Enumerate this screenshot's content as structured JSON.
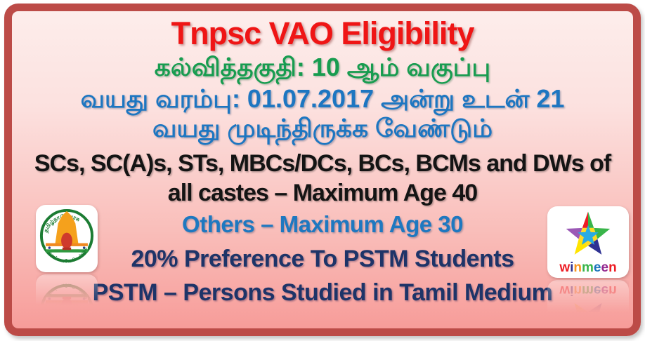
{
  "frame": {
    "border_color": "#bc4b47",
    "background_top": "#fdedeb",
    "background_bottom": "#f79c99"
  },
  "content": {
    "title": {
      "text": "Tnpsc VAO Eligibility",
      "color": "#ef1515"
    },
    "lines": [
      {
        "text": "கல்வித்தகுதி: 10 ஆம் வகுப்பு",
        "color": "#179c4f"
      },
      {
        "text": "வயது வரம்பு: 01.07.2017 அன்று உடன் 21",
        "color": "#1d76c1"
      },
      {
        "text": "வயது முடிந்திருக்க வேண்டும்",
        "color": "#1d76c1"
      },
      {
        "text": "SCs, SC(A)s, STs, MBCs/DCs, BCs, BCMs and DWs of",
        "color": "#141414"
      },
      {
        "text": "all castes – Maximum Age 40",
        "color": "#141414"
      },
      {
        "text": "Others – Maximum Age 30",
        "color": "#1e78c0"
      },
      {
        "text": "20% Preference To PSTM Students",
        "color": "#1e3468"
      },
      {
        "text": "PSTM – Persons Studied in Tamil Medium",
        "color": "#1e3468"
      }
    ]
  },
  "logos": {
    "tamilnadu": {
      "ring_text": "தமிழ்நாடு அரசு",
      "motto": "வாய்மையே வெல்லும்",
      "ring_color": "#1c7c33",
      "gopuram_color": "#f5a11c",
      "lion_color": "#cf3a2c"
    },
    "winmeen": {
      "word": "winmeen",
      "letters": [
        {
          "ch": "w",
          "color": "#ed1c24"
        },
        {
          "ch": "i",
          "color": "#2e3192"
        },
        {
          "ch": "n",
          "color": "#f7941d"
        },
        {
          "ch": "m",
          "color": "#39b54a"
        },
        {
          "ch": "e",
          "color": "#1b75bc"
        },
        {
          "ch": "e",
          "color": "#92278f"
        },
        {
          "ch": "n",
          "color": "#ed1c24"
        }
      ],
      "star_colors": {
        "red": "#ed1c24",
        "green": "#39b54a",
        "blue": "#2e3192",
        "yellow": "#ffe400",
        "purple": "#9b59b6",
        "center": "#29abe2"
      }
    }
  }
}
